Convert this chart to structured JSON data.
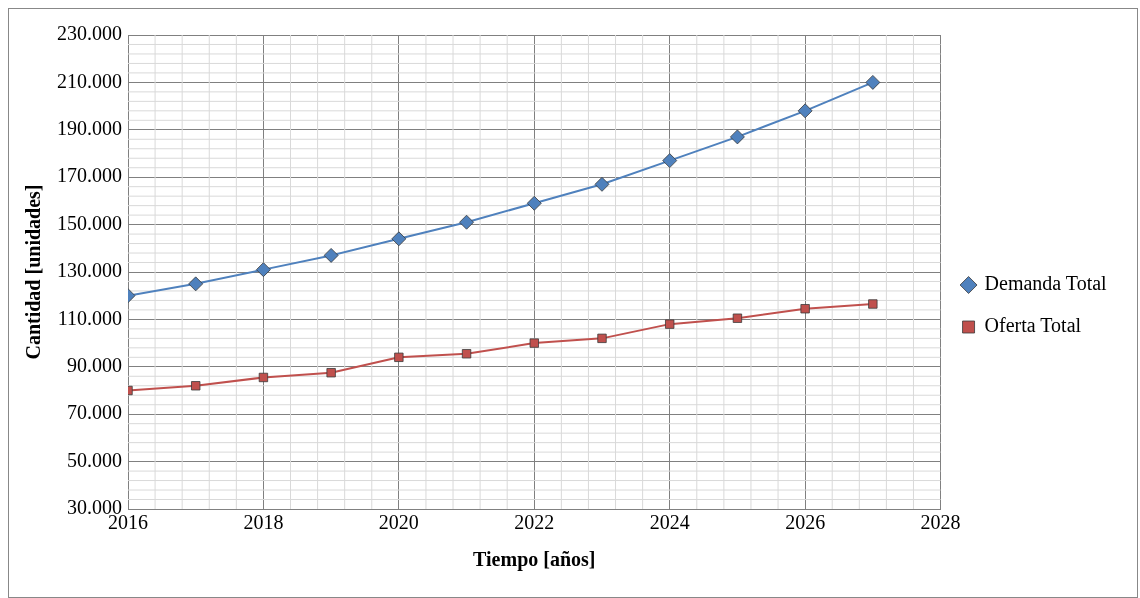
{
  "chart_data": {
    "type": "line",
    "xlabel": "Tiempo [años]",
    "ylabel": "Cantidad [unidades]",
    "x": [
      2016,
      2017,
      2018,
      2019,
      2020,
      2021,
      2022,
      2023,
      2024,
      2025,
      2026,
      2027
    ],
    "xlim": [
      2016,
      2028
    ],
    "xticks": [
      2016,
      2018,
      2020,
      2022,
      2024,
      2026,
      2028
    ],
    "ylim": [
      30000,
      230000
    ],
    "yticks": [
      {
        "value": 30000,
        "label": "30.000"
      },
      {
        "value": 50000,
        "label": "50.000"
      },
      {
        "value": 70000,
        "label": "70.000"
      },
      {
        "value": 90000,
        "label": "90.000"
      },
      {
        "value": 110000,
        "label": "110.000"
      },
      {
        "value": 130000,
        "label": "130.000"
      },
      {
        "value": 150000,
        "label": "150.000"
      },
      {
        "value": 170000,
        "label": "170.000"
      },
      {
        "value": 190000,
        "label": "190.000"
      },
      {
        "value": 210000,
        "label": "210.000"
      },
      {
        "value": 230000,
        "label": "230.000"
      }
    ],
    "grid": true,
    "legend": "right",
    "line_style": "solid",
    "series": [
      {
        "name": "Demanda Total",
        "color": "#4f81bd",
        "marker": "diamond",
        "values": [
          120000,
          125000,
          131000,
          137000,
          144000,
          151000,
          159000,
          167000,
          177000,
          187000,
          198000,
          210000
        ]
      },
      {
        "name": "Oferta Total",
        "color": "#c0504d",
        "marker": "square",
        "values": [
          80000,
          82000,
          85500,
          87500,
          94000,
          95500,
          100000,
          102000,
          108000,
          110500,
          114500,
          116500
        ]
      }
    ]
  }
}
